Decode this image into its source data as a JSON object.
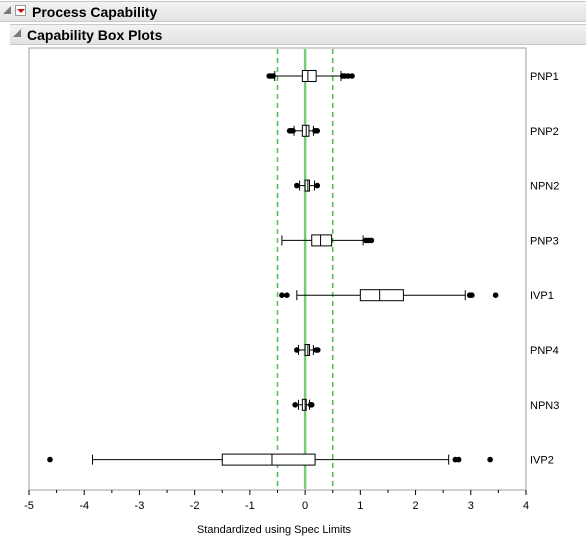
{
  "process_header": {
    "title": "Process Capability"
  },
  "boxplots_header": {
    "title": "Capability Box Plots"
  },
  "chart_data": {
    "type": "boxplot",
    "xlabel": "Standardized using Spec Limits",
    "xlim": [
      -5,
      4
    ],
    "xticks": [
      -5,
      -4,
      -3,
      -2,
      -1,
      0,
      1,
      2,
      3,
      4
    ],
    "reference_lines": [
      {
        "value": -0.5,
        "style": "dashed",
        "color": "#55c055"
      },
      {
        "value": 0,
        "style": "solid",
        "color": "#78cc78"
      },
      {
        "value": 0.5,
        "style": "dashed",
        "color": "#55c055"
      }
    ],
    "series": [
      {
        "name": "PNP1",
        "whisker_low": -0.55,
        "q1": -0.05,
        "median": 0.05,
        "q3": 0.2,
        "whisker_high": 0.65,
        "outliers": [
          -0.65,
          -0.62,
          -0.58,
          0.68,
          0.72,
          0.78,
          0.85
        ]
      },
      {
        "name": "PNP2",
        "whisker_low": -0.2,
        "q1": -0.05,
        "median": 0.02,
        "q3": 0.07,
        "whisker_high": 0.15,
        "outliers": [
          -0.28,
          -0.25,
          -0.22,
          0.18,
          0.22
        ]
      },
      {
        "name": "NPN2",
        "whisker_low": -0.1,
        "q1": 0.0,
        "median": 0.05,
        "q3": 0.08,
        "whisker_high": 0.17,
        "outliers": [
          -0.15,
          0.22
        ]
      },
      {
        "name": "PNP3",
        "whisker_low": -0.42,
        "q1": 0.12,
        "median": 0.28,
        "q3": 0.48,
        "whisker_high": 1.05,
        "outliers": [
          1.1,
          1.15,
          1.2
        ]
      },
      {
        "name": "IVP1",
        "whisker_low": -0.15,
        "q1": 1.0,
        "median": 1.35,
        "q3": 1.78,
        "whisker_high": 2.9,
        "outliers": [
          -0.42,
          -0.33,
          2.98,
          3.02,
          3.45
        ]
      },
      {
        "name": "PNP4",
        "whisker_low": -0.12,
        "q1": 0.0,
        "median": 0.05,
        "q3": 0.08,
        "whisker_high": 0.15,
        "outliers": [
          -0.15,
          0.2,
          0.23
        ]
      },
      {
        "name": "NPN3",
        "whisker_low": -0.12,
        "q1": -0.05,
        "median": 0.0,
        "q3": 0.02,
        "whisker_high": 0.08,
        "outliers": [
          -0.18,
          0.1,
          0.12
        ]
      },
      {
        "name": "IVP2",
        "whisker_low": -3.85,
        "q1": -1.5,
        "median": -0.6,
        "q3": 0.18,
        "whisker_high": 2.6,
        "outliers": [
          -4.62,
          2.72,
          2.78,
          3.35
        ]
      }
    ]
  }
}
